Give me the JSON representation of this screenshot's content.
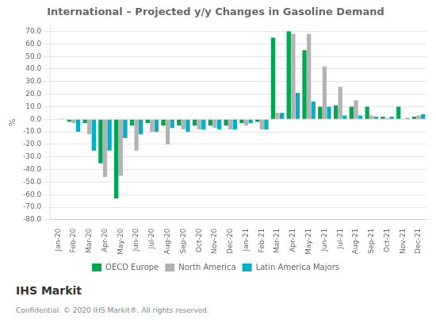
{
  "chart_data": {
    "type": "bar",
    "title": "International – Projected y/y Changes in Gasoline Demand",
    "ylabel": "%",
    "categories": [
      "Jan-20",
      "Feb-20",
      "Mar-20",
      "Apr-20",
      "May-20",
      "Jun-20",
      "Jul-20",
      "Aug-20",
      "Sep-20",
      "Oct-20",
      "Nov-20",
      "Dec-20",
      "Jan-21",
      "Feb-21",
      "Mar-21",
      "Apr-21",
      "May-21",
      "Jun-21",
      "Jul-21",
      "Aug-21",
      "Sep-21",
      "Oct-21",
      "Nov-21",
      "Dec-21"
    ],
    "series": [
      {
        "name": "OECD Europe",
        "color": "#00a651",
        "values": [
          0.0,
          -2.0,
          -3.0,
          -35.0,
          -63.0,
          -5.0,
          -3.0,
          -5.0,
          -5.0,
          -5.0,
          -5.0,
          -5.0,
          -3.0,
          -2.0,
          65.0,
          70.0,
          55.0,
          10.0,
          11.0,
          10.0,
          10.0,
          2.0,
          10.0,
          2.0
        ]
      },
      {
        "name": "North America",
        "color": "#b3b3b3",
        "values": [
          0.5,
          -3.0,
          -12.0,
          -46.0,
          -45.0,
          -25.0,
          -10.0,
          -20.0,
          -8.0,
          -8.0,
          -7.0,
          -8.0,
          -5.0,
          -8.0,
          5.0,
          68.0,
          68.0,
          42.0,
          26.0,
          15.0,
          3.0,
          1.0,
          0.5,
          3.0
        ]
      },
      {
        "name": "Latin America Majors",
        "color": "#00b0c8",
        "values": [
          0.5,
          -10.0,
          -25.0,
          -25.0,
          -15.0,
          -12.0,
          -10.0,
          -7.0,
          -10.0,
          -8.0,
          -8.0,
          -8.0,
          -3.0,
          -8.0,
          5.0,
          21.0,
          14.0,
          10.0,
          3.0,
          3.0,
          2.0,
          2.0,
          1.0,
          4.0
        ]
      }
    ],
    "ylim": [
      -80,
      75
    ],
    "yticks": [
      {
        "value": -80,
        "label": "-80.0"
      },
      {
        "value": -70,
        "label": "-70.0"
      },
      {
        "value": -60,
        "label": "-60.0"
      },
      {
        "value": -50,
        "label": "-50.0"
      },
      {
        "value": -40,
        "label": "-40.0"
      },
      {
        "value": -30,
        "label": "-30.0"
      },
      {
        "value": -20,
        "label": "-20.0"
      },
      {
        "value": -10,
        "label": "-10.0"
      },
      {
        "value": 0,
        "label": "0.0"
      },
      {
        "value": 10,
        "label": "10.0"
      },
      {
        "value": 20,
        "label": "20.0"
      },
      {
        "value": 30,
        "label": "30.0"
      },
      {
        "value": 40,
        "label": "40.0"
      },
      {
        "value": 50,
        "label": "50.0"
      },
      {
        "value": 60,
        "label": "60.0"
      },
      {
        "value": 70,
        "label": "70.0"
      }
    ],
    "grid": true,
    "legend": "bottom",
    "annotations": [
      "IHS Markit",
      "Confidential.  © 2020 IHS Markit®. All rights reserved."
    ]
  }
}
